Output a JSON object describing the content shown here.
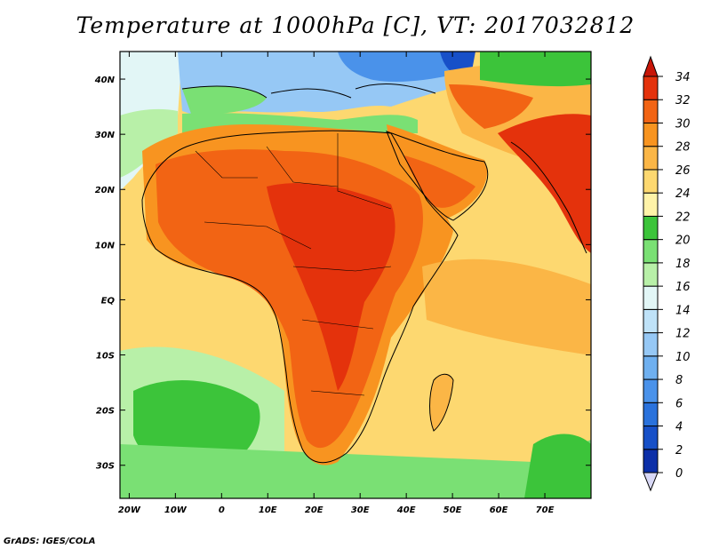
{
  "title": "Temperature at 1000hPa [C], VT: 2017032812",
  "credit": "GrADS: IGES/COLA",
  "map": {
    "lon_range": [
      -22,
      80
    ],
    "lat_range": [
      -36,
      45
    ],
    "lon_ticks": [
      {
        "value": -20,
        "label": "20W"
      },
      {
        "value": -10,
        "label": "10W"
      },
      {
        "value": 0,
        "label": "0"
      },
      {
        "value": 10,
        "label": "10E"
      },
      {
        "value": 20,
        "label": "20E"
      },
      {
        "value": 30,
        "label": "30E"
      },
      {
        "value": 40,
        "label": "40E"
      },
      {
        "value": 50,
        "label": "50E"
      },
      {
        "value": 60,
        "label": "60E"
      },
      {
        "value": 70,
        "label": "70E"
      }
    ],
    "lat_ticks": [
      {
        "value": 40,
        "label": "40N"
      },
      {
        "value": 30,
        "label": "30N"
      },
      {
        "value": 20,
        "label": "20N"
      },
      {
        "value": 10,
        "label": "10N"
      },
      {
        "value": 0,
        "label": "EQ"
      },
      {
        "value": -10,
        "label": "10S"
      },
      {
        "value": -20,
        "label": "20S"
      },
      {
        "value": -30,
        "label": "30S"
      }
    ]
  },
  "colorbar": {
    "levels": [
      {
        "value": 0,
        "label": "0",
        "color": "#0a1a6e"
      },
      {
        "value": 2,
        "label": "2",
        "color": "#0c2fa8"
      },
      {
        "value": 4,
        "label": "4",
        "color": "#1750c8"
      },
      {
        "value": 6,
        "label": "6",
        "color": "#2a72dc"
      },
      {
        "value": 8,
        "label": "8",
        "color": "#4a92ea"
      },
      {
        "value": 10,
        "label": "10",
        "color": "#6fb0f0"
      },
      {
        "value": 12,
        "label": "12",
        "color": "#96c8f5"
      },
      {
        "value": 14,
        "label": "14",
        "color": "#bfe2f8"
      },
      {
        "value": 16,
        "label": "16",
        "color": "#e2f6f6"
      },
      {
        "value": 18,
        "label": "18",
        "color": "#b8f0a8"
      },
      {
        "value": 20,
        "label": "20",
        "color": "#7ae074"
      },
      {
        "value": 22,
        "label": "22",
        "color": "#3cc43a"
      },
      {
        "value": 24,
        "label": "24",
        "color": "#fff3a8"
      },
      {
        "value": 26,
        "label": "26",
        "color": "#fdd870"
      },
      {
        "value": 28,
        "label": "28",
        "color": "#fbb646"
      },
      {
        "value": 30,
        "label": "30",
        "color": "#f89420"
      },
      {
        "value": 32,
        "label": "32",
        "color": "#f26414"
      },
      {
        "value": 34,
        "label": "34",
        "color": "#e4320c"
      }
    ],
    "under_color": "#d8d8f6",
    "over_color": "#c81608"
  }
}
